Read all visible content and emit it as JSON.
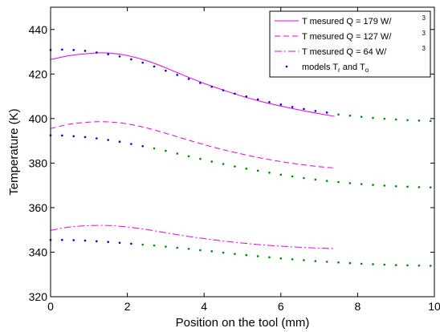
{
  "chart_data": {
    "type": "line",
    "title": "",
    "xlabel": "Position on the tool (mm)",
    "ylabel": "Temperature (K)",
    "xlim": [
      0,
      10
    ],
    "ylim": [
      320,
      450
    ],
    "x_ticks": [
      0,
      2,
      4,
      6,
      8,
      10
    ],
    "x_tick_labels": [
      "0",
      "2",
      "4",
      "6",
      "8",
      "10"
    ],
    "y_ticks": [
      320,
      340,
      360,
      380,
      400,
      420,
      440
    ],
    "y_tick_labels": [
      "320",
      "340",
      "360",
      "380",
      "400",
      "420",
      "440"
    ],
    "grid": false,
    "legend_position": "top-right",
    "legend": [
      {
        "text": "T mesured Q = 179 W/",
        "sup": "3",
        "style": "solid",
        "color": "#ee00ee"
      },
      {
        "text": "T mesured Q = 127 W/",
        "sup": "3",
        "style": "dashed",
        "color": "#ee00ee"
      },
      {
        "text": "T mesured Q = 64 W/",
        "sup": "3",
        "style": "dashdot",
        "color": "#ee00ee"
      },
      {
        "text": "models T",
        "sub1": "r",
        "mid": " and T",
        "sub2": "o",
        "style": "dots",
        "color": "#0000cc"
      }
    ],
    "series": [
      {
        "style": "solid",
        "color": "#ee00ee",
        "x": [
          0,
          0.5,
          1.0,
          1.3,
          1.6,
          2.0,
          2.5,
          3.0,
          3.5,
          4.0,
          4.5,
          5.0,
          5.5,
          6.0,
          6.5,
          7.0,
          7.4
        ],
        "y": [
          426.5,
          428.3,
          429.2,
          429.5,
          429.3,
          428.3,
          426.0,
          422.8,
          419.2,
          415.8,
          412.8,
          410.0,
          407.6,
          405.6,
          403.8,
          402.2,
          401.0
        ]
      },
      {
        "style": "dashed",
        "color": "#ee00ee",
        "x": [
          0,
          0.5,
          1.0,
          1.3,
          1.6,
          2.0,
          2.5,
          3.0,
          3.5,
          4.0,
          4.5,
          5.0,
          5.5,
          6.0,
          6.5,
          7.0,
          7.4
        ],
        "y": [
          395.5,
          397.5,
          398.4,
          398.6,
          398.4,
          397.6,
          395.8,
          393.4,
          390.8,
          388.3,
          386.0,
          384.0,
          382.2,
          380.7,
          379.4,
          378.4,
          377.8
        ]
      },
      {
        "style": "dashdot",
        "color": "#ee00ee",
        "x": [
          0,
          0.5,
          1.0,
          1.3,
          1.6,
          2.0,
          2.5,
          3.0,
          3.5,
          4.0,
          4.5,
          5.0,
          5.5,
          6.0,
          6.5,
          7.0,
          7.4
        ],
        "y": [
          349.8,
          351.3,
          351.9,
          352.0,
          351.9,
          351.3,
          350.2,
          348.7,
          347.3,
          346.1,
          345.0,
          344.1,
          343.3,
          342.7,
          342.2,
          341.8,
          341.6
        ]
      },
      {
        "style": "dots",
        "color": "#0000cc",
        "x": [
          0,
          0.3,
          0.6,
          0.9,
          1.2,
          1.5,
          1.8,
          2.1,
          2.4,
          2.7,
          3.0,
          3.3,
          3.6,
          3.9,
          4.2,
          4.5,
          4.8,
          5.1,
          5.4,
          5.7,
          6.0,
          6.3,
          6.6,
          6.9,
          7.2
        ],
        "y": [
          430.8,
          431.0,
          430.8,
          430.4,
          429.7,
          428.9,
          427.9,
          426.6,
          425.1,
          423.4,
          421.5,
          419.6,
          417.8,
          416.0,
          414.3,
          412.7,
          411.2,
          409.9,
          408.6,
          407.4,
          406.3,
          405.2,
          404.3,
          403.4,
          402.7
        ]
      },
      {
        "style": "dots",
        "color": "#0000cc",
        "x": [
          0,
          0.3,
          0.6,
          0.9,
          1.2,
          1.5,
          1.8,
          2.1,
          2.4
        ],
        "y": [
          392.5,
          392.4,
          392.1,
          391.7,
          391.1,
          390.4,
          389.6,
          388.6,
          387.6
        ]
      },
      {
        "style": "dots",
        "color": "#0000cc",
        "x": [
          0,
          0.3,
          0.6,
          0.9,
          1.2,
          1.5,
          1.8,
          2.1
        ],
        "y": [
          345.5,
          345.5,
          345.4,
          345.2,
          344.9,
          344.6,
          344.2,
          343.8
        ]
      },
      {
        "style": "dots",
        "color": "#008800",
        "x": [
          7.5,
          7.8,
          8.1,
          8.4,
          8.7,
          9.0,
          9.3,
          9.6,
          9.9
        ],
        "y": [
          401.8,
          401.3,
          400.8,
          400.3,
          399.9,
          399.6,
          399.3,
          399.1,
          398.9
        ]
      },
      {
        "style": "dots",
        "color": "#008800",
        "x": [
          2.7,
          3.0,
          3.3,
          3.6,
          3.9,
          4.2,
          4.5,
          4.8,
          5.1,
          5.4,
          5.7,
          6.0,
          6.3,
          6.6,
          6.9,
          7.2,
          7.5,
          7.8,
          8.1,
          8.4,
          8.7,
          9.0,
          9.3,
          9.6,
          9.9
        ],
        "y": [
          386.6,
          385.5,
          384.3,
          383.1,
          381.9,
          380.7,
          379.6,
          378.5,
          377.5,
          376.6,
          375.7,
          374.8,
          374.0,
          373.3,
          372.6,
          372.0,
          371.5,
          371.0,
          370.6,
          370.2,
          369.9,
          369.6,
          369.4,
          369.2,
          369.1
        ]
      },
      {
        "style": "dots",
        "color": "#008800",
        "x": [
          2.4,
          2.7,
          3.0,
          3.3,
          3.6,
          3.9,
          4.2,
          4.5,
          4.8,
          5.1,
          5.4,
          5.7,
          6.0,
          6.3,
          6.6,
          6.9,
          7.2,
          7.5,
          7.8,
          8.1,
          8.4,
          8.7,
          9.0,
          9.3,
          9.6,
          9.9
        ],
        "y": [
          343.4,
          343.0,
          342.5,
          342.0,
          341.5,
          340.9,
          340.4,
          339.8,
          339.2,
          338.7,
          338.2,
          337.7,
          337.2,
          336.8,
          336.4,
          336.0,
          335.7,
          335.4,
          335.1,
          334.8,
          334.6,
          334.4,
          334.2,
          334.1,
          334.0,
          333.9
        ]
      }
    ]
  }
}
